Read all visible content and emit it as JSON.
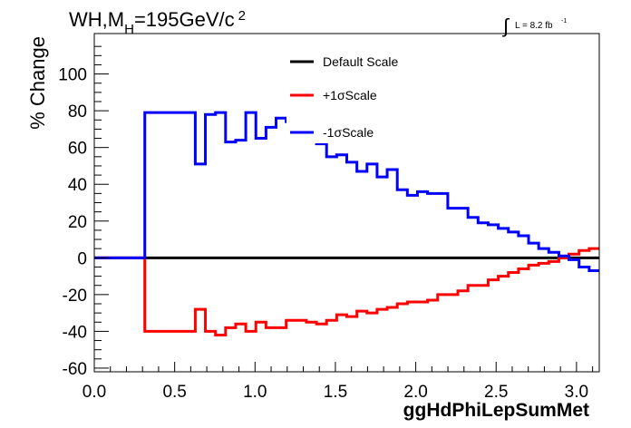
{
  "chart_data": {
    "type": "line",
    "title_main": "WH,M",
    "title_sub": "H",
    "title_tail": "=195GeV/c",
    "title_sup": "2",
    "lumi_label": "L = 8.2 fb",
    "lumi_sup": "-1",
    "xlabel": "ggHdPhiLepSumMet",
    "ylabel": "% Change",
    "xlim": [
      0,
      3.1416
    ],
    "ylim": [
      -62,
      122
    ],
    "xticks": [
      0.0,
      0.5,
      1.0,
      1.5,
      2.0,
      2.5,
      3.0
    ],
    "xtick_labels": [
      "0.0",
      "0.5",
      "1.0",
      "1.5",
      "2.0",
      "2.5",
      "3.0"
    ],
    "yticks": [
      -60,
      -40,
      -20,
      0,
      20,
      40,
      60,
      80,
      100
    ],
    "ytick_labels": [
      "-60",
      "-40",
      "-20",
      "0",
      "20",
      "40",
      "60",
      "80",
      "100"
    ],
    "legend_position": "top-center",
    "bin_edges": [
      0,
      0.0628,
      0.1257,
      0.1885,
      0.2513,
      0.3142,
      0.377,
      0.4398,
      0.5027,
      0.5655,
      0.6283,
      0.6912,
      0.754,
      0.8168,
      0.8796,
      0.9425,
      1.0053,
      1.0681,
      1.131,
      1.1938,
      1.2566,
      1.3195,
      1.3823,
      1.4451,
      1.508,
      1.5708,
      1.6336,
      1.6965,
      1.7593,
      1.8221,
      1.885,
      1.9478,
      2.0106,
      2.0735,
      2.1363,
      2.1991,
      2.2619,
      2.3248,
      2.3876,
      2.4504,
      2.5133,
      2.5761,
      2.6389,
      2.7018,
      2.7646,
      2.8274,
      2.8903,
      2.9531,
      3.0159,
      3.0788,
      3.1416
    ],
    "series": [
      {
        "name": "Default Scale",
        "color": "#000000",
        "values": [
          0,
          0,
          0,
          0,
          0,
          0,
          0,
          0,
          0,
          0,
          0,
          0,
          0,
          0,
          0,
          0,
          0,
          0,
          0,
          0,
          0,
          0,
          0,
          0,
          0,
          0,
          0,
          0,
          0,
          0,
          0,
          0,
          0,
          0,
          0,
          0,
          0,
          0,
          0,
          0,
          0,
          0,
          0,
          0,
          0,
          0,
          0,
          0,
          0,
          0
        ]
      },
      {
        "name": "+1σScale",
        "color": "#ff0000",
        "values": [
          0,
          0,
          0,
          0,
          0,
          -40,
          -40,
          -40,
          -40,
          -40,
          -28,
          -40,
          -42,
          -38,
          -36,
          -40,
          -35,
          -38,
          -38,
          -34,
          -34,
          -35,
          -36,
          -34,
          -31,
          -32,
          -29,
          -30,
          -28,
          -27,
          -25,
          -24,
          -24,
          -23,
          -20,
          -20,
          -18,
          -15,
          -15,
          -12,
          -10,
          -8,
          -6,
          -4,
          -3,
          -2,
          0,
          2,
          4,
          5
        ]
      },
      {
        "name": "-1σScale",
        "color": "#0000ff",
        "values": [
          0,
          0,
          0,
          0,
          0,
          79,
          79,
          79,
          79,
          79,
          51,
          78,
          79,
          63,
          64,
          79,
          65,
          71,
          76,
          74,
          74,
          70,
          62,
          55,
          56,
          52,
          47,
          51,
          44,
          48,
          37,
          34,
          36,
          35,
          35,
          27,
          27,
          22,
          19,
          18,
          16,
          14,
          12,
          8,
          5,
          3,
          1,
          -1,
          -5,
          -7
        ]
      }
    ]
  }
}
